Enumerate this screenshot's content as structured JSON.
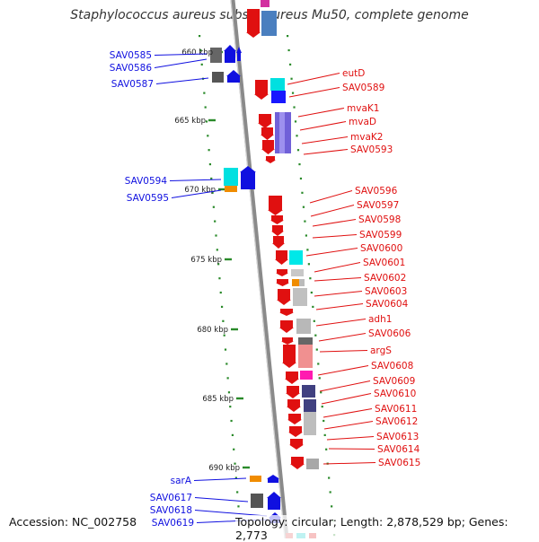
{
  "title": "Staphylococcus aureus subsp. aureus Mu50, complete genome",
  "accession": "Accession: NC_002758",
  "summary": "Topology: circular; Length: 2,878,529 bp; Genes: 2,773",
  "colors": {
    "forward_gene": "#1010e0",
    "reverse_gene": "#e01010",
    "backbone": "#8a8a8a",
    "ticks": "#2a8a2a"
  },
  "scale_labels": [
    "660 kbp",
    "665 kbp",
    "670 kbp",
    "675 kbp",
    "680 kbp",
    "685 kbp",
    "690 kbp"
  ],
  "genes_forward": [
    "SAV0585",
    "SAV0586",
    "SAV0587",
    "SAV0594",
    "SAV0595",
    "sarA",
    "SAV0617",
    "SAV0618",
    "SAV0619"
  ],
  "genes_reverse": [
    "eutD",
    "SAV0589",
    "mvaK1",
    "mvaD",
    "mvaK2",
    "SAV0593",
    "SAV0596",
    "SAV0597",
    "SAV0598",
    "SAV0599",
    "SAV0600",
    "SAV0601",
    "SAV0602",
    "SAV0603",
    "SAV0604",
    "adh1",
    "SAV0606",
    "argS",
    "SAV0608",
    "SAV0609",
    "SAV0610",
    "SAV0611",
    "SAV0612",
    "SAV0613",
    "SAV0614",
    "SAV0615"
  ]
}
